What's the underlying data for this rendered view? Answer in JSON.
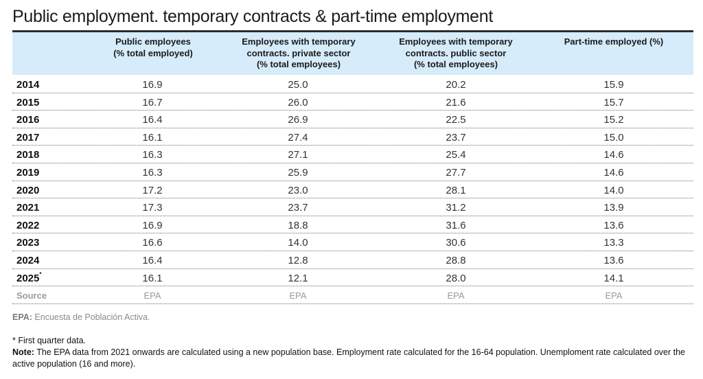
{
  "title": "Public employment. temporary contracts & part-time employment",
  "table": {
    "headers": [
      [
        "Public employees",
        "(% total employed)"
      ],
      [
        "Employees with temporary",
        "contracts. private sector",
        "(% total employees)"
      ],
      [
        "Employees with temporary",
        "contracts. public sector",
        "(% total employees)"
      ],
      [
        "Part-time employed (%)"
      ]
    ],
    "rows": [
      {
        "year": "2014",
        "mark": "",
        "values": [
          "16.9",
          "25.0",
          "20.2",
          "15.9"
        ]
      },
      {
        "year": "2015",
        "mark": "",
        "values": [
          "16.7",
          "26.0",
          "21.6",
          "15.7"
        ]
      },
      {
        "year": "2016",
        "mark": "",
        "values": [
          "16.4",
          "26.9",
          "22.5",
          "15.2"
        ]
      },
      {
        "year": "2017",
        "mark": "",
        "values": [
          "16.1",
          "27.4",
          "23.7",
          "15.0"
        ]
      },
      {
        "year": "2018",
        "mark": "",
        "values": [
          "16.3",
          "27.1",
          "25.4",
          "14.6"
        ]
      },
      {
        "year": "2019",
        "mark": "",
        "values": [
          "16.3",
          "25.9",
          "27.7",
          "14.6"
        ]
      },
      {
        "year": "2020",
        "mark": "",
        "values": [
          "17.2",
          "23.0",
          "28.1",
          "14.0"
        ]
      },
      {
        "year": "2021",
        "mark": "",
        "values": [
          "17.3",
          "23.7",
          "31.2",
          "13.9"
        ]
      },
      {
        "year": "2022",
        "mark": "",
        "values": [
          "16.9",
          "18.8",
          "31.6",
          "13.6"
        ]
      },
      {
        "year": "2023",
        "mark": "",
        "values": [
          "16.6",
          "14.0",
          "30.6",
          "13.3"
        ]
      },
      {
        "year": "2024",
        "mark": "",
        "values": [
          "16.4",
          "12.8",
          "28.8",
          "13.6"
        ]
      },
      {
        "year": "2025",
        "mark": "*",
        "values": [
          "16.1",
          "12.1",
          "28.0",
          "14.1"
        ]
      }
    ],
    "source_row": {
      "label": "Source",
      "values": [
        "EPA",
        "EPA",
        "EPA",
        "EPA"
      ]
    }
  },
  "notes": {
    "epa_abbr": "EPA:",
    "epa_text": " Encuesta de Población Activa.",
    "first_quarter": "* First quarter data.",
    "note_label": "Note:",
    "note_text": " The EPA data from 2021 onwards are calculated using a new population base. Employment rate calculated for the 16-64 population. Unemploment rate calculated over the active population (16 and more)."
  },
  "chart_data": {
    "type": "table",
    "title": "Public employment. temporary contracts & part-time employment",
    "columns": [
      "Public employees (% total employed)",
      "Employees with temporary contracts. private sector (% total employees)",
      "Employees with temporary contracts. public sector (% total employees)",
      "Part-time employed (%)"
    ],
    "categories": [
      "2014",
      "2015",
      "2016",
      "2017",
      "2018",
      "2019",
      "2020",
      "2021",
      "2022",
      "2023",
      "2024",
      "2025*"
    ],
    "series": [
      {
        "name": "Public employees (% total employed)",
        "values": [
          16.9,
          16.7,
          16.4,
          16.1,
          16.3,
          16.3,
          17.2,
          17.3,
          16.9,
          16.6,
          16.4,
          16.1
        ]
      },
      {
        "name": "Employees with temporary contracts. private sector (% total employees)",
        "values": [
          25.0,
          26.0,
          26.9,
          27.4,
          27.1,
          25.9,
          23.0,
          23.7,
          18.8,
          14.0,
          12.8,
          12.1
        ]
      },
      {
        "name": "Employees with temporary contracts. public sector (% total employees)",
        "values": [
          20.2,
          21.6,
          22.5,
          23.7,
          25.4,
          27.7,
          28.1,
          31.2,
          31.6,
          30.6,
          28.8,
          28.0
        ]
      },
      {
        "name": "Part-time employed (%)",
        "values": [
          15.9,
          15.7,
          15.2,
          15.0,
          14.6,
          14.6,
          14.0,
          13.9,
          13.6,
          13.3,
          13.6,
          14.1
        ]
      }
    ],
    "source": [
      "EPA",
      "EPA",
      "EPA",
      "EPA"
    ]
  }
}
